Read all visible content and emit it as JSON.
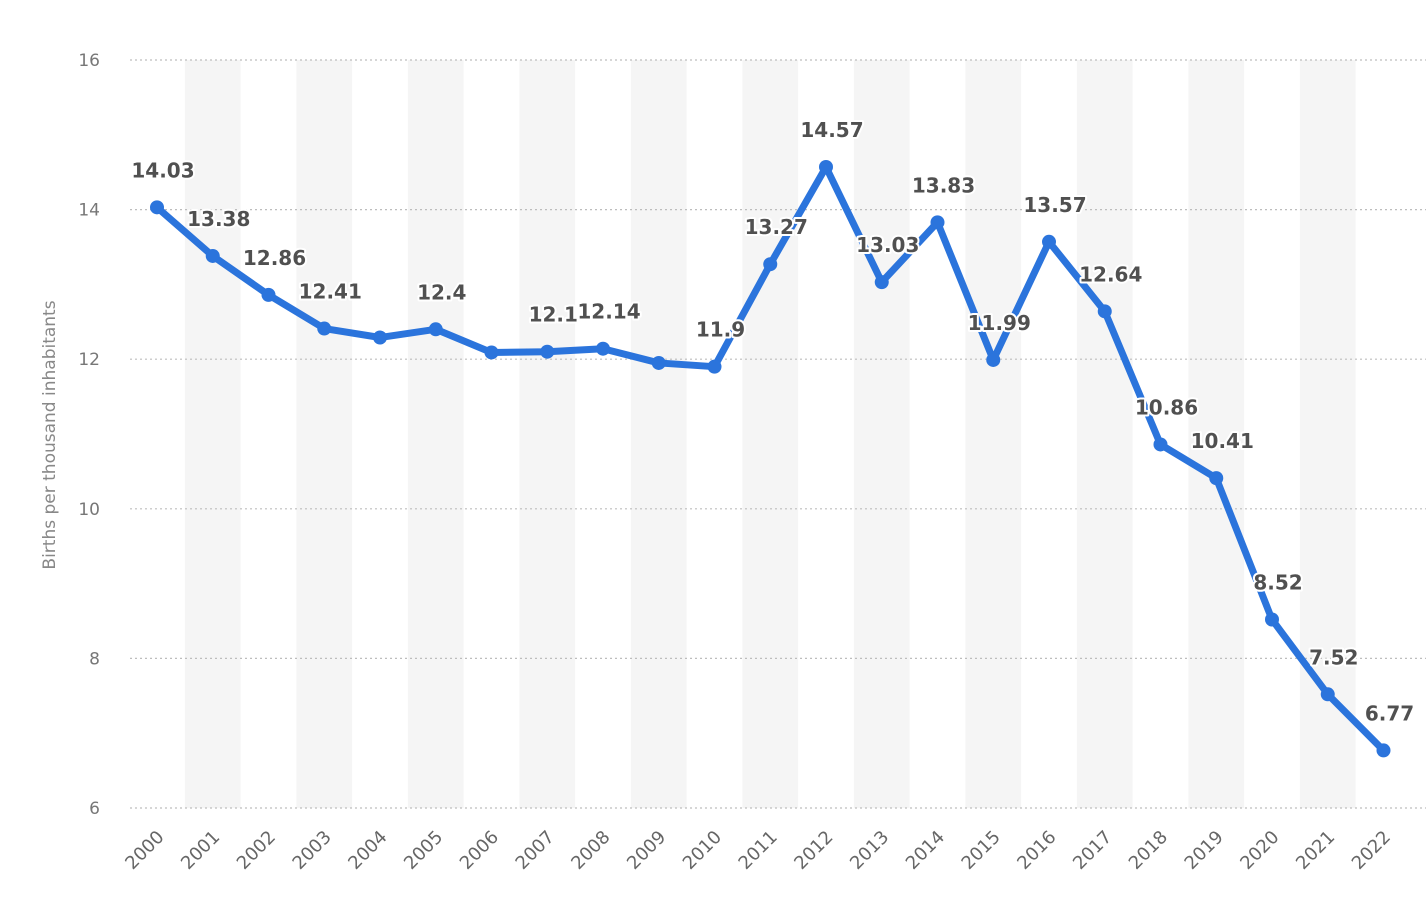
{
  "chart_data": {
    "type": "line",
    "ylabel": "Births per thousand inhabitants",
    "xlabel": "",
    "ylim": [
      6,
      16
    ],
    "yticks": [
      6,
      8,
      10,
      12,
      14,
      16
    ],
    "grid": true,
    "alternating_bands": true,
    "line_color": "#2b74dc",
    "x": [
      "2000",
      "2001",
      "2002",
      "2003",
      "2004",
      "2005",
      "2006",
      "2007",
      "2008",
      "2009",
      "2010",
      "2011",
      "2012",
      "2013",
      "2014",
      "2015",
      "2016",
      "2017",
      "2018",
      "2019",
      "2020",
      "2021",
      "2022"
    ],
    "series": [
      {
        "values": [
          14.03,
          13.38,
          12.86,
          12.41,
          12.29,
          12.4,
          12.09,
          12.1,
          12.14,
          11.95,
          11.9,
          13.27,
          14.57,
          13.03,
          13.83,
          11.99,
          13.57,
          12.64,
          10.86,
          10.41,
          8.52,
          7.52,
          6.77
        ],
        "labels": [
          "14.03",
          "13.38",
          "12.86",
          "12.41",
          "",
          "12.4",
          "",
          "12.1",
          "12.14",
          "",
          "11.9",
          "13.27",
          "14.57",
          "13.03",
          "13.83",
          "11.99",
          "13.57",
          "12.64",
          "10.86",
          "10.41",
          "8.52",
          "7.52",
          "6.77"
        ]
      }
    ]
  }
}
